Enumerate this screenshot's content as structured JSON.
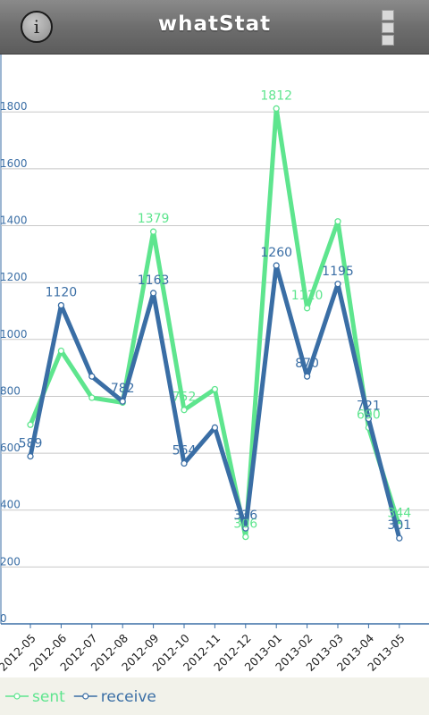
{
  "app": {
    "title": "whatStat"
  },
  "chart_data": {
    "type": "line",
    "categories": [
      "2012-05",
      "2012-06",
      "2012-07",
      "2012-08",
      "2012-09",
      "2012-10",
      "2012-11",
      "2012-12",
      "2013-01",
      "2013-02",
      "2013-03",
      "2013-04",
      "2013-05"
    ],
    "series": [
      {
        "name": "sent",
        "color": "#5ee58e",
        "values": [
          700,
          960,
          795,
          778,
          1379,
          752,
          825,
          306,
          1812,
          1110,
          1415,
          690,
          344
        ],
        "labels": {
          "4": "1379",
          "5": "752",
          "7": "306",
          "8": "1812",
          "9": "1110",
          "11": "690",
          "12": "344"
        }
      },
      {
        "name": "receive",
        "color": "#3a6ea5",
        "values": [
          589,
          1120,
          870,
          782,
          1163,
          564,
          690,
          336,
          1260,
          870,
          1195,
          721,
          301
        ],
        "labels": {
          "0": "589",
          "1": "1120",
          "3": "782",
          "4": "1163",
          "5": "564",
          "7": "336",
          "8": "1260",
          "9": "870",
          "10": "1195",
          "11": "721",
          "12": "301"
        }
      }
    ],
    "yticks": [
      "0",
      "200",
      "400",
      "600",
      "800",
      "1000",
      "1200",
      "1400",
      "1600",
      "1800"
    ],
    "ylim": [
      0,
      1800
    ],
    "grid": true,
    "legend_position": "bottom-left"
  }
}
